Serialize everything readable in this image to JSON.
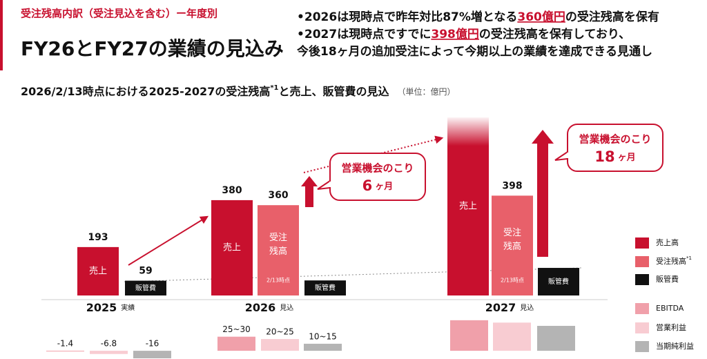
{
  "header": {
    "category": "受注残高内訳（受注見込を含む）ー年度別",
    "title": "FY26とFY27の業績の見込み"
  },
  "bullets": [
    {
      "marker": "•",
      "parts": [
        "2026は現時点で昨年対比87%増となる",
        "360億円",
        "の受注残高を保有"
      ]
    },
    {
      "marker": "•",
      "parts": [
        "2027は現時点ですでに",
        "398億円",
        "の受注残高を保有しており、"
      ]
    },
    {
      "parts": [
        "今後18ヶ月の追加受注によって今期以上の業績を達成できる見通し"
      ]
    }
  ],
  "chart_data": [
    {
      "type": "bar",
      "title": "2026/2/13時点における2025-2027の受注残高",
      "title_note": "*1",
      "title_end": "と売上、販管費の見込",
      "unit": "（単位：億円）",
      "categories": [
        "2025",
        "2026",
        "2027"
      ],
      "category_notes": [
        "実績",
        "見込",
        "見込"
      ],
      "ylim": [
        0,
        710
      ],
      "series": [
        {
          "name": "売上高",
          "color": "#c8102e",
          "bar_label": "売上",
          "values": [
            193,
            380,
            710
          ],
          "value_labels": [
            "193",
            "380",
            null
          ]
        },
        {
          "name": "受注残高",
          "name_note": "*1",
          "color": "#e8606a",
          "bar_label": [
            "受注",
            "残高"
          ],
          "bar_note": "2/13時点",
          "values": [
            null,
            360,
            398
          ],
          "value_labels": [
            null,
            "360",
            "398"
          ]
        },
        {
          "name": "販管費",
          "color": "#111111",
          "bar_label": "販管費",
          "values": [
            59,
            60,
            110
          ],
          "value_labels": [
            "59",
            null,
            null
          ]
        }
      ],
      "callouts": [
        null,
        {
          "title": "営業機会のこり",
          "number": 6,
          "unit": "ヶ月"
        },
        {
          "title": "営業機会のこり",
          "number": 18,
          "unit": "ヶ月"
        }
      ]
    },
    {
      "type": "bar",
      "ylim": [
        -16,
        78
      ],
      "series": [
        {
          "name": "EBITDA",
          "color": "#f0a0aa",
          "values": [
            -1.4,
            25,
            65
          ],
          "upper": [
            null,
            30,
            null
          ],
          "value_labels": [
            "-1.4",
            "25~30",
            null
          ]
        },
        {
          "name": "営業利益",
          "color": "#f8ccd2",
          "values": [
            -6.8,
            20,
            60
          ],
          "upper": [
            null,
            25,
            null
          ],
          "value_labels": [
            "-6.8",
            "20~25",
            null
          ]
        },
        {
          "name": "当期純利益",
          "color": "#b4b4b4",
          "values": [
            -16,
            10,
            53
          ],
          "upper": [
            null,
            15,
            null
          ],
          "value_labels": [
            "-16",
            "10~15",
            null
          ]
        }
      ]
    }
  ]
}
